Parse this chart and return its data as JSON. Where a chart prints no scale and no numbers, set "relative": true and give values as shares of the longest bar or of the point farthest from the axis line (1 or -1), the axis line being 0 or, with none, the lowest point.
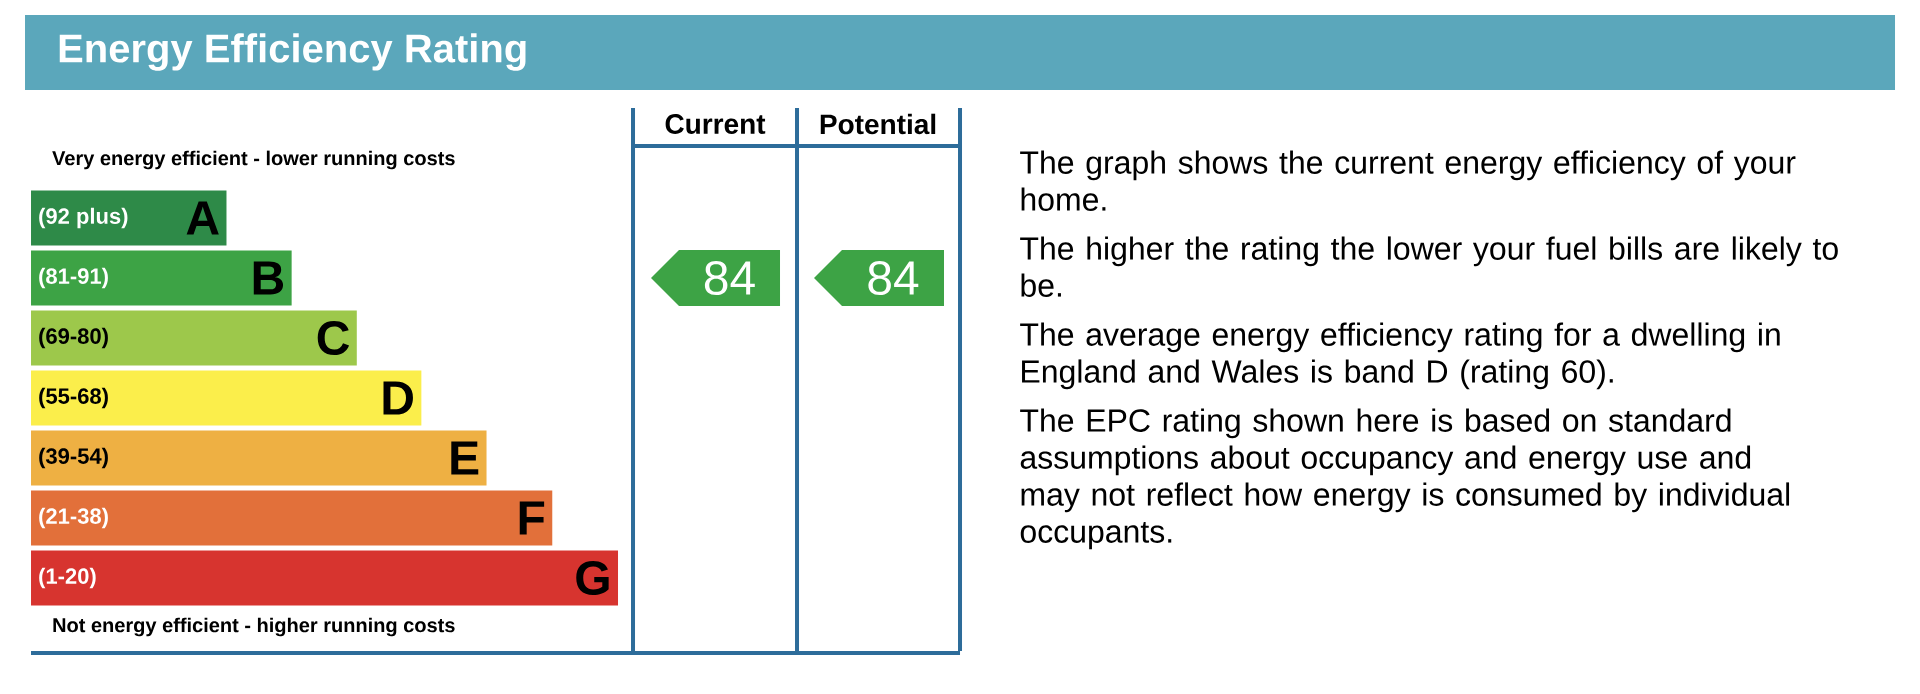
{
  "chart_data": {
    "type": "bar",
    "orientation": "horizontal",
    "relative": true,
    "title": "Energy Efficiency Rating",
    "categories": [
      "A",
      "B",
      "C",
      "D",
      "E",
      "F",
      "G"
    ],
    "values": [
      0.333,
      0.444,
      0.555,
      0.665,
      0.776,
      0.888,
      1
    ],
    "colors": [
      "#2e8a48",
      "#3da345",
      "#9dc84b",
      "#fbee4b",
      "#eeb043",
      "#e2703a",
      "#d7342f"
    ],
    "annotations": [
      "Very energy efficient - lower running costs",
      "Not energy efficient - higher running costs",
      "(92 plus)",
      "(81-91)",
      "(69-80)",
      "(55-68)",
      "(39-54)",
      "(21-38)",
      "(1-20)",
      "Current",
      "Potential",
      "84",
      "84",
      "The graph shows the current energy efficiency of your home.",
      "The higher the rating the lower your fuel bills are likely to be.",
      "The average energy efficiency rating for a dwelling in England and Wales is band D (rating 60).",
      "The EPC rating shown here is based on standard assumptions about occupancy and energy use and may not reflect how energy is consumed by individual occupants."
    ]
  }
}
